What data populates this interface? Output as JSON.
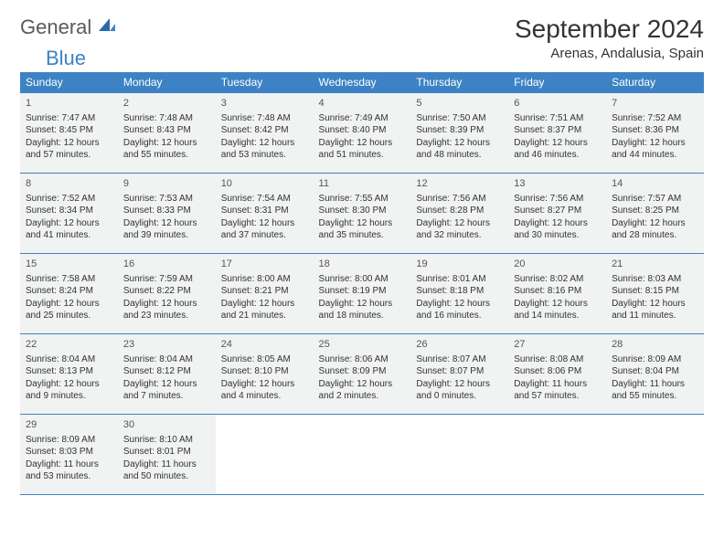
{
  "logo": {
    "word1": "General",
    "word2": "Blue"
  },
  "title": "September 2024",
  "location": "Arenas, Andalusia, Spain",
  "weekdays": [
    "Sunday",
    "Monday",
    "Tuesday",
    "Wednesday",
    "Thursday",
    "Friday",
    "Saturday"
  ],
  "colors": {
    "header_bg": "#3d82c4",
    "header_text": "#ffffff",
    "cell_bg": "#f1f2f2",
    "border": "#3d82c4",
    "logo_gray": "#5a5a5a",
    "logo_blue": "#3d82c4"
  },
  "weeks": [
    [
      {
        "n": "1",
        "sr": "Sunrise: 7:47 AM",
        "ss": "Sunset: 8:45 PM",
        "d1": "Daylight: 12 hours",
        "d2": "and 57 minutes."
      },
      {
        "n": "2",
        "sr": "Sunrise: 7:48 AM",
        "ss": "Sunset: 8:43 PM",
        "d1": "Daylight: 12 hours",
        "d2": "and 55 minutes."
      },
      {
        "n": "3",
        "sr": "Sunrise: 7:48 AM",
        "ss": "Sunset: 8:42 PM",
        "d1": "Daylight: 12 hours",
        "d2": "and 53 minutes."
      },
      {
        "n": "4",
        "sr": "Sunrise: 7:49 AM",
        "ss": "Sunset: 8:40 PM",
        "d1": "Daylight: 12 hours",
        "d2": "and 51 minutes."
      },
      {
        "n": "5",
        "sr": "Sunrise: 7:50 AM",
        "ss": "Sunset: 8:39 PM",
        "d1": "Daylight: 12 hours",
        "d2": "and 48 minutes."
      },
      {
        "n": "6",
        "sr": "Sunrise: 7:51 AM",
        "ss": "Sunset: 8:37 PM",
        "d1": "Daylight: 12 hours",
        "d2": "and 46 minutes."
      },
      {
        "n": "7",
        "sr": "Sunrise: 7:52 AM",
        "ss": "Sunset: 8:36 PM",
        "d1": "Daylight: 12 hours",
        "d2": "and 44 minutes."
      }
    ],
    [
      {
        "n": "8",
        "sr": "Sunrise: 7:52 AM",
        "ss": "Sunset: 8:34 PM",
        "d1": "Daylight: 12 hours",
        "d2": "and 41 minutes."
      },
      {
        "n": "9",
        "sr": "Sunrise: 7:53 AM",
        "ss": "Sunset: 8:33 PM",
        "d1": "Daylight: 12 hours",
        "d2": "and 39 minutes."
      },
      {
        "n": "10",
        "sr": "Sunrise: 7:54 AM",
        "ss": "Sunset: 8:31 PM",
        "d1": "Daylight: 12 hours",
        "d2": "and 37 minutes."
      },
      {
        "n": "11",
        "sr": "Sunrise: 7:55 AM",
        "ss": "Sunset: 8:30 PM",
        "d1": "Daylight: 12 hours",
        "d2": "and 35 minutes."
      },
      {
        "n": "12",
        "sr": "Sunrise: 7:56 AM",
        "ss": "Sunset: 8:28 PM",
        "d1": "Daylight: 12 hours",
        "d2": "and 32 minutes."
      },
      {
        "n": "13",
        "sr": "Sunrise: 7:56 AM",
        "ss": "Sunset: 8:27 PM",
        "d1": "Daylight: 12 hours",
        "d2": "and 30 minutes."
      },
      {
        "n": "14",
        "sr": "Sunrise: 7:57 AM",
        "ss": "Sunset: 8:25 PM",
        "d1": "Daylight: 12 hours",
        "d2": "and 28 minutes."
      }
    ],
    [
      {
        "n": "15",
        "sr": "Sunrise: 7:58 AM",
        "ss": "Sunset: 8:24 PM",
        "d1": "Daylight: 12 hours",
        "d2": "and 25 minutes."
      },
      {
        "n": "16",
        "sr": "Sunrise: 7:59 AM",
        "ss": "Sunset: 8:22 PM",
        "d1": "Daylight: 12 hours",
        "d2": "and 23 minutes."
      },
      {
        "n": "17",
        "sr": "Sunrise: 8:00 AM",
        "ss": "Sunset: 8:21 PM",
        "d1": "Daylight: 12 hours",
        "d2": "and 21 minutes."
      },
      {
        "n": "18",
        "sr": "Sunrise: 8:00 AM",
        "ss": "Sunset: 8:19 PM",
        "d1": "Daylight: 12 hours",
        "d2": "and 18 minutes."
      },
      {
        "n": "19",
        "sr": "Sunrise: 8:01 AM",
        "ss": "Sunset: 8:18 PM",
        "d1": "Daylight: 12 hours",
        "d2": "and 16 minutes."
      },
      {
        "n": "20",
        "sr": "Sunrise: 8:02 AM",
        "ss": "Sunset: 8:16 PM",
        "d1": "Daylight: 12 hours",
        "d2": "and 14 minutes."
      },
      {
        "n": "21",
        "sr": "Sunrise: 8:03 AM",
        "ss": "Sunset: 8:15 PM",
        "d1": "Daylight: 12 hours",
        "d2": "and 11 minutes."
      }
    ],
    [
      {
        "n": "22",
        "sr": "Sunrise: 8:04 AM",
        "ss": "Sunset: 8:13 PM",
        "d1": "Daylight: 12 hours",
        "d2": "and 9 minutes."
      },
      {
        "n": "23",
        "sr": "Sunrise: 8:04 AM",
        "ss": "Sunset: 8:12 PM",
        "d1": "Daylight: 12 hours",
        "d2": "and 7 minutes."
      },
      {
        "n": "24",
        "sr": "Sunrise: 8:05 AM",
        "ss": "Sunset: 8:10 PM",
        "d1": "Daylight: 12 hours",
        "d2": "and 4 minutes."
      },
      {
        "n": "25",
        "sr": "Sunrise: 8:06 AM",
        "ss": "Sunset: 8:09 PM",
        "d1": "Daylight: 12 hours",
        "d2": "and 2 minutes."
      },
      {
        "n": "26",
        "sr": "Sunrise: 8:07 AM",
        "ss": "Sunset: 8:07 PM",
        "d1": "Daylight: 12 hours",
        "d2": "and 0 minutes."
      },
      {
        "n": "27",
        "sr": "Sunrise: 8:08 AM",
        "ss": "Sunset: 8:06 PM",
        "d1": "Daylight: 11 hours",
        "d2": "and 57 minutes."
      },
      {
        "n": "28",
        "sr": "Sunrise: 8:09 AM",
        "ss": "Sunset: 8:04 PM",
        "d1": "Daylight: 11 hours",
        "d2": "and 55 minutes."
      }
    ],
    [
      {
        "n": "29",
        "sr": "Sunrise: 8:09 AM",
        "ss": "Sunset: 8:03 PM",
        "d1": "Daylight: 11 hours",
        "d2": "and 53 minutes."
      },
      {
        "n": "30",
        "sr": "Sunrise: 8:10 AM",
        "ss": "Sunset: 8:01 PM",
        "d1": "Daylight: 11 hours",
        "d2": "and 50 minutes."
      },
      null,
      null,
      null,
      null,
      null
    ]
  ]
}
